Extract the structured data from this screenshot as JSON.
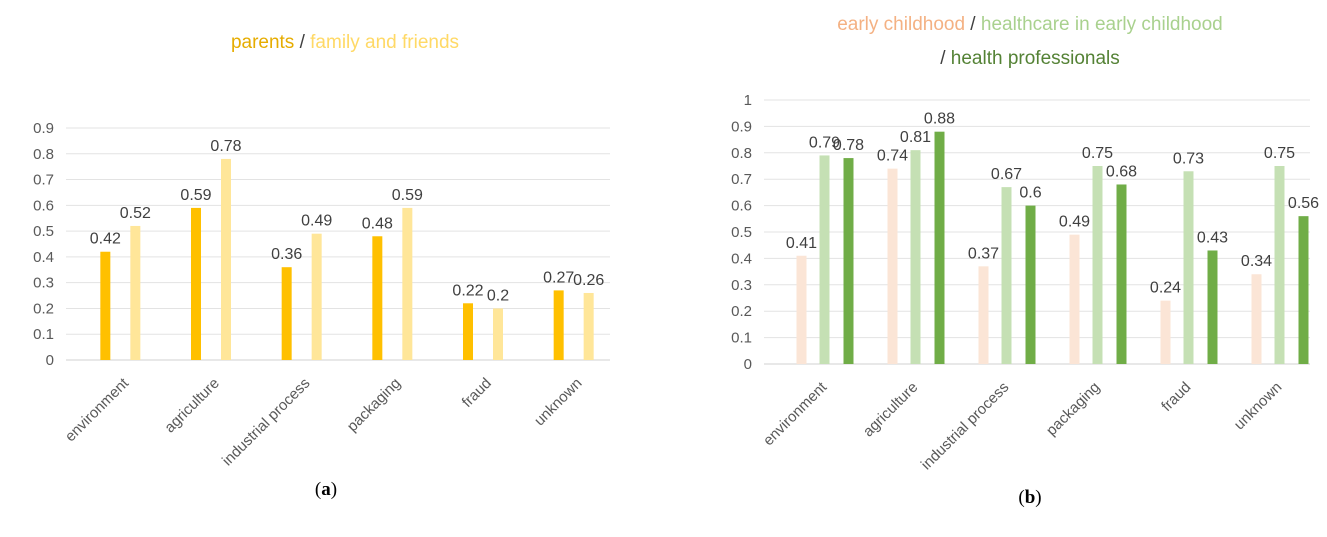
{
  "chart_data": [
    {
      "type": "bar",
      "panel": "a",
      "caption": {
        "pre": "(",
        "letter": "a",
        "post": ")"
      },
      "title_parts": [
        {
          "text": "parents",
          "color": "#E6AC00"
        },
        {
          "text": "  /  ",
          "color": "#404040"
        },
        {
          "text": "family and friends",
          "color": "#FFD966"
        }
      ],
      "categories": [
        "environment",
        "agriculture",
        "industrial process",
        "packaging",
        "fraud",
        "unknown"
      ],
      "series": [
        {
          "name": "parents",
          "color": "#FFC000",
          "values": [
            0.42,
            0.59,
            0.36,
            0.48,
            0.22,
            0.27
          ]
        },
        {
          "name": "family and friends",
          "color": "#FFE699",
          "values": [
            0.52,
            0.78,
            0.49,
            0.59,
            0.2,
            0.26
          ]
        }
      ],
      "data_labels": [
        [
          "0.42",
          "0.59",
          "0.36",
          "0.48",
          "0.22",
          "0.27"
        ],
        [
          "0.52",
          "0.78",
          "0.49",
          "0.59",
          "0.2",
          "0.26"
        ]
      ],
      "yticks": [
        "0",
        "0.1",
        "0.2",
        "0.3",
        "0.4",
        "0.5",
        "0.6",
        "0.7",
        "0.8",
        "0.9"
      ],
      "ylim": [
        0,
        0.9
      ],
      "grid": true,
      "legend": "title"
    },
    {
      "type": "bar",
      "panel": "b",
      "caption": {
        "pre": "(",
        "letter": "b",
        "post": ")"
      },
      "title_parts": [
        {
          "text": "early childhood",
          "color": "#F4B183"
        },
        {
          "text": " / ",
          "color": "#404040"
        },
        {
          "text": "healthcare in early childhood",
          "color": "#A9D18E"
        }
      ],
      "title_parts_line2": [
        {
          "text": "/ ",
          "color": "#404040"
        },
        {
          "text": "health professionals",
          "color": "#548235"
        }
      ],
      "categories": [
        "environment",
        "agriculture",
        "industrial process",
        "packaging",
        "fraud",
        "unknown"
      ],
      "series": [
        {
          "name": "early childhood",
          "color": "#FBE5D6",
          "values": [
            0.41,
            0.74,
            0.37,
            0.49,
            0.24,
            0.34
          ]
        },
        {
          "name": "healthcare in early childhood",
          "color": "#C5E0B4",
          "values": [
            0.79,
            0.81,
            0.67,
            0.75,
            0.73,
            0.75
          ]
        },
        {
          "name": "health professionals",
          "color": "#70AD47",
          "values": [
            0.78,
            0.88,
            0.6,
            0.68,
            0.43,
            0.56
          ]
        }
      ],
      "data_labels": [
        [
          "0.41",
          "0.74",
          "0.37",
          "0.49",
          "0.24",
          "0.34"
        ],
        [
          "0.79",
          "0.81",
          "0.67",
          "0.75",
          "0.73",
          "0.75"
        ],
        [
          "0.78",
          "0.88",
          "0.6",
          "0.68",
          "0.43",
          "0.56"
        ]
      ],
      "yticks": [
        "0",
        "0.1",
        "0.2",
        "0.3",
        "0.4",
        "0.5",
        "0.6",
        "0.7",
        "0.8",
        "0.9",
        "1"
      ],
      "ylim": [
        0,
        1
      ],
      "grid": true,
      "legend": "title"
    }
  ]
}
